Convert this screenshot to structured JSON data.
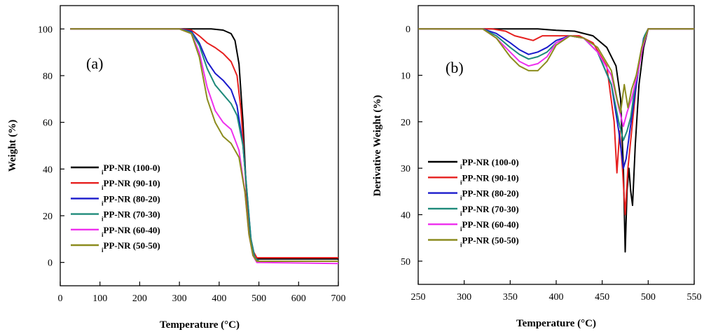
{
  "chart_data": [
    {
      "type": "line",
      "panel_label": "(a)",
      "xlabel": "Temperature (°C)",
      "ylabel": "Weight (%)",
      "xlim": [
        0,
        700
      ],
      "ylim": [
        -10,
        110
      ],
      "xticks": [
        0,
        100,
        200,
        300,
        400,
        500,
        600,
        700
      ],
      "yticks": [
        0,
        20,
        40,
        60,
        80,
        100
      ],
      "legend_position": "bottom-left",
      "series": [
        {
          "name": "PP-NR (100-0)",
          "sub": "i",
          "color": "#000000",
          "x": [
            25,
            300,
            380,
            410,
            430,
            440,
            450,
            460,
            470,
            480,
            490,
            500,
            700
          ],
          "y": [
            100,
            100,
            100,
            99.5,
            98,
            95,
            85,
            60,
            25,
            8,
            2,
            1.5,
            1.5
          ]
        },
        {
          "name": "PP-NR (90-10)",
          "sub": "i",
          "color": "#e6201f",
          "x": [
            25,
            300,
            330,
            350,
            370,
            390,
            410,
            430,
            445,
            455,
            465,
            475,
            485,
            495,
            700
          ],
          "y": [
            100,
            100,
            99.5,
            97,
            94,
            92,
            89.5,
            86,
            80,
            65,
            40,
            15,
            5,
            2,
            2
          ]
        },
        {
          "name": "PP-NR (80-20)",
          "sub": "i",
          "color": "#1a1acc",
          "x": [
            25,
            300,
            330,
            350,
            370,
            390,
            410,
            430,
            445,
            460,
            470,
            480,
            490,
            500,
            700
          ],
          "y": [
            100,
            100,
            99,
            94,
            86,
            81,
            78,
            74,
            67,
            50,
            30,
            10,
            2,
            0.5,
            0.5
          ]
        },
        {
          "name": "PP-NR (70-30)",
          "sub": "i",
          "color": "#1e8a7a",
          "x": [
            25,
            300,
            330,
            350,
            370,
            390,
            410,
            430,
            445,
            460,
            470,
            480,
            490,
            500,
            700
          ],
          "y": [
            100,
            100,
            98.5,
            93,
            83,
            76,
            72,
            68,
            63,
            50,
            30,
            10,
            2,
            0.5,
            0.5
          ]
        },
        {
          "name": "PP-NR (60-40)",
          "sub": "i",
          "color": "#ee30ee",
          "x": [
            25,
            300,
            330,
            350,
            370,
            390,
            410,
            430,
            450,
            465,
            475,
            485,
            495,
            700
          ],
          "y": [
            100,
            100,
            98,
            90,
            75,
            65,
            60,
            57,
            48,
            30,
            12,
            3,
            0,
            -0.5
          ]
        },
        {
          "name": "PP-NR (50-50)",
          "sub": "i",
          "color": "#8c8c1e",
          "x": [
            25,
            300,
            330,
            350,
            370,
            390,
            410,
            430,
            450,
            465,
            475,
            485,
            495,
            700
          ],
          "y": [
            100,
            100,
            98,
            88,
            70,
            60,
            54,
            51,
            45,
            30,
            12,
            3,
            0.5,
            0.5
          ]
        }
      ]
    },
    {
      "type": "line",
      "panel_label": "(b)",
      "xlabel": "Temperature (°C)",
      "ylabel": "Derivative Weight (%)",
      "xlim": [
        250,
        550
      ],
      "ylim": [
        55,
        -5
      ],
      "y_inverted": true,
      "xticks": [
        250,
        300,
        350,
        400,
        450,
        500,
        550
      ],
      "yticks": [
        0,
        10,
        20,
        30,
        40,
        50
      ],
      "legend_position": "bottom-left",
      "series": [
        {
          "name": "PP-NR (100-0)",
          "sub": "i",
          "color": "#000000",
          "x": [
            250,
            380,
            400,
            420,
            440,
            455,
            465,
            470,
            473,
            475,
            477,
            479,
            481,
            483,
            486,
            490,
            495,
            500,
            550
          ],
          "y": [
            0,
            0,
            0.3,
            0.5,
            1.5,
            4,
            8,
            15,
            30,
            48,
            35,
            30,
            35,
            38,
            25,
            12,
            4,
            0,
            0
          ]
        },
        {
          "name": "PP-NR (90-10)",
          "sub": "i",
          "color": "#e6201f",
          "x": [
            250,
            330,
            345,
            355,
            365,
            375,
            385,
            395,
            410,
            425,
            440,
            455,
            463,
            466,
            469,
            472,
            475,
            478,
            482,
            487,
            493,
            500,
            550
          ],
          "y": [
            0,
            0,
            0.5,
            1.5,
            2,
            2.5,
            1.5,
            1.5,
            1.5,
            1.5,
            3,
            8,
            20,
            31,
            22,
            30,
            40,
            30,
            22,
            12,
            4,
            0,
            0
          ]
        },
        {
          "name": "PP-NR (80-20)",
          "sub": "i",
          "color": "#1a1acc",
          "x": [
            250,
            320,
            335,
            350,
            360,
            370,
            380,
            390,
            400,
            415,
            430,
            445,
            460,
            468,
            473,
            476,
            480,
            485,
            490,
            495,
            500,
            550
          ],
          "y": [
            0,
            0,
            1,
            3,
            4.5,
            5.5,
            5,
            4,
            2.5,
            1.5,
            2,
            5,
            12,
            22,
            30,
            28,
            22,
            15,
            8,
            2,
            0,
            0
          ]
        },
        {
          "name": "PP-NR (70-30)",
          "sub": "i",
          "color": "#1e8a7a",
          "x": [
            250,
            320,
            335,
            350,
            360,
            370,
            380,
            390,
            400,
            415,
            430,
            445,
            460,
            468,
            473,
            477,
            481,
            486,
            491,
            496,
            500,
            550
          ],
          "y": [
            0,
            0,
            1.5,
            4,
            5.5,
            6.5,
            6,
            5,
            3,
            1.5,
            2,
            5,
            12,
            20,
            24,
            22,
            19,
            12,
            6,
            1.5,
            0,
            0
          ]
        },
        {
          "name": "PP-NR (60-40)",
          "sub": "i",
          "color": "#ee30ee",
          "x": [
            250,
            320,
            335,
            350,
            360,
            370,
            380,
            390,
            400,
            415,
            430,
            445,
            460,
            468,
            473,
            477,
            482,
            488,
            494,
            500,
            550
          ],
          "y": [
            0,
            0,
            2,
            5,
            7,
            8,
            7.5,
            6,
            3,
            1.5,
            2,
            5,
            10,
            17,
            21,
            18,
            15,
            10,
            4,
            0,
            0
          ]
        },
        {
          "name": "PP-NR (50-50)",
          "sub": "i",
          "color": "#8c8c1e",
          "x": [
            250,
            320,
            335,
            350,
            360,
            370,
            380,
            390,
            400,
            415,
            430,
            445,
            460,
            466,
            470,
            474,
            478,
            482,
            487,
            493,
            500,
            550
          ],
          "y": [
            0,
            0,
            2,
            6,
            8,
            9,
            9,
            7,
            3.5,
            1.5,
            2,
            4,
            9,
            15,
            18,
            12,
            17,
            13,
            10,
            4,
            0,
            0
          ]
        }
      ]
    }
  ]
}
